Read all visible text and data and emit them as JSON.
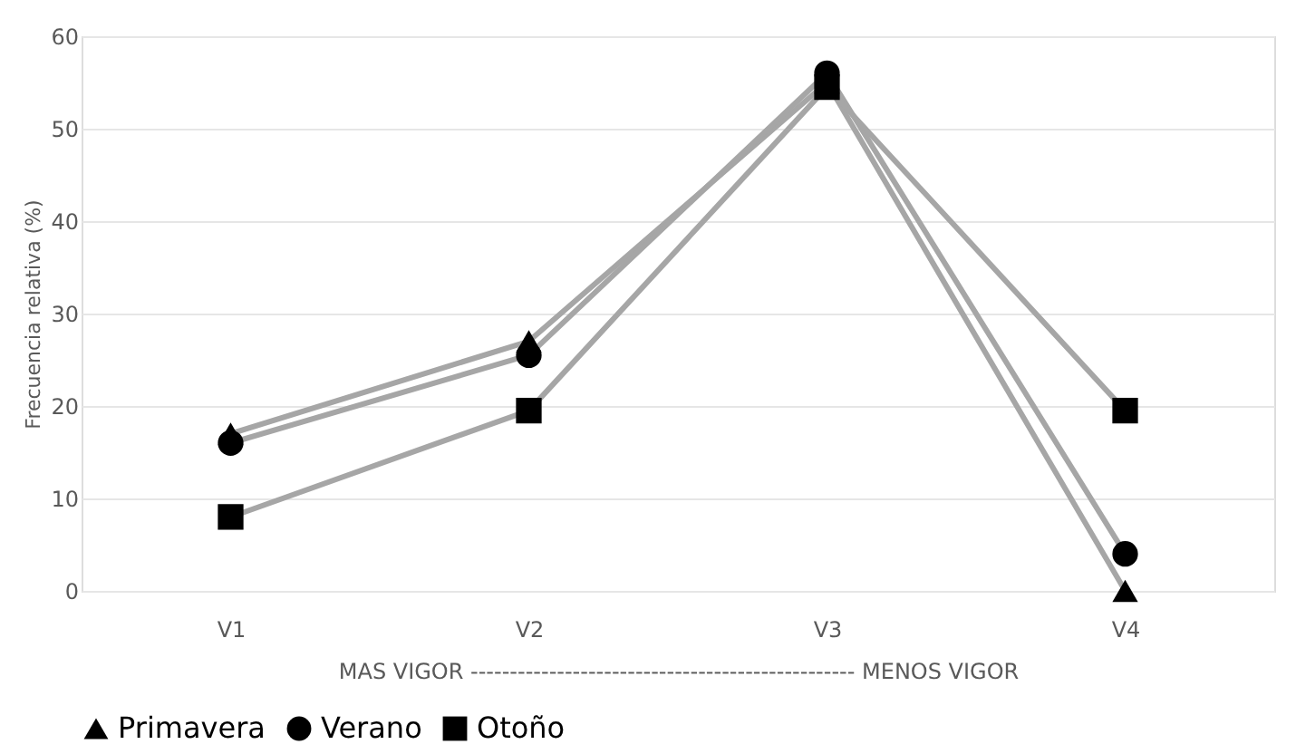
{
  "chart_data": {
    "type": "line",
    "ylabel": "Frecuencia relativa (%)",
    "xlabel": "MAS VIGOR ------------------------------------------------- MENOS VIGOR",
    "categories": [
      "V1",
      "V2",
      "V3",
      "V4"
    ],
    "series": [
      {
        "name": "Primavera",
        "color": "#000000",
        "marker": "triangle",
        "values": [
          17,
          27,
          55,
          0
        ]
      },
      {
        "name": "Verano",
        "color": "#000000",
        "marker": "circle",
        "values": [
          16,
          25.5,
          56,
          4
        ]
      },
      {
        "name": "Otoño",
        "color": "#000000",
        "marker": "square",
        "values": [
          8,
          19.5,
          54.5,
          19.5
        ]
      }
    ],
    "ylim": [
      0,
      60
    ],
    "yticks": [
      0,
      10,
      20,
      30,
      40,
      50,
      60
    ],
    "grid": "y",
    "legend": "bottom",
    "line_style": "solid"
  }
}
